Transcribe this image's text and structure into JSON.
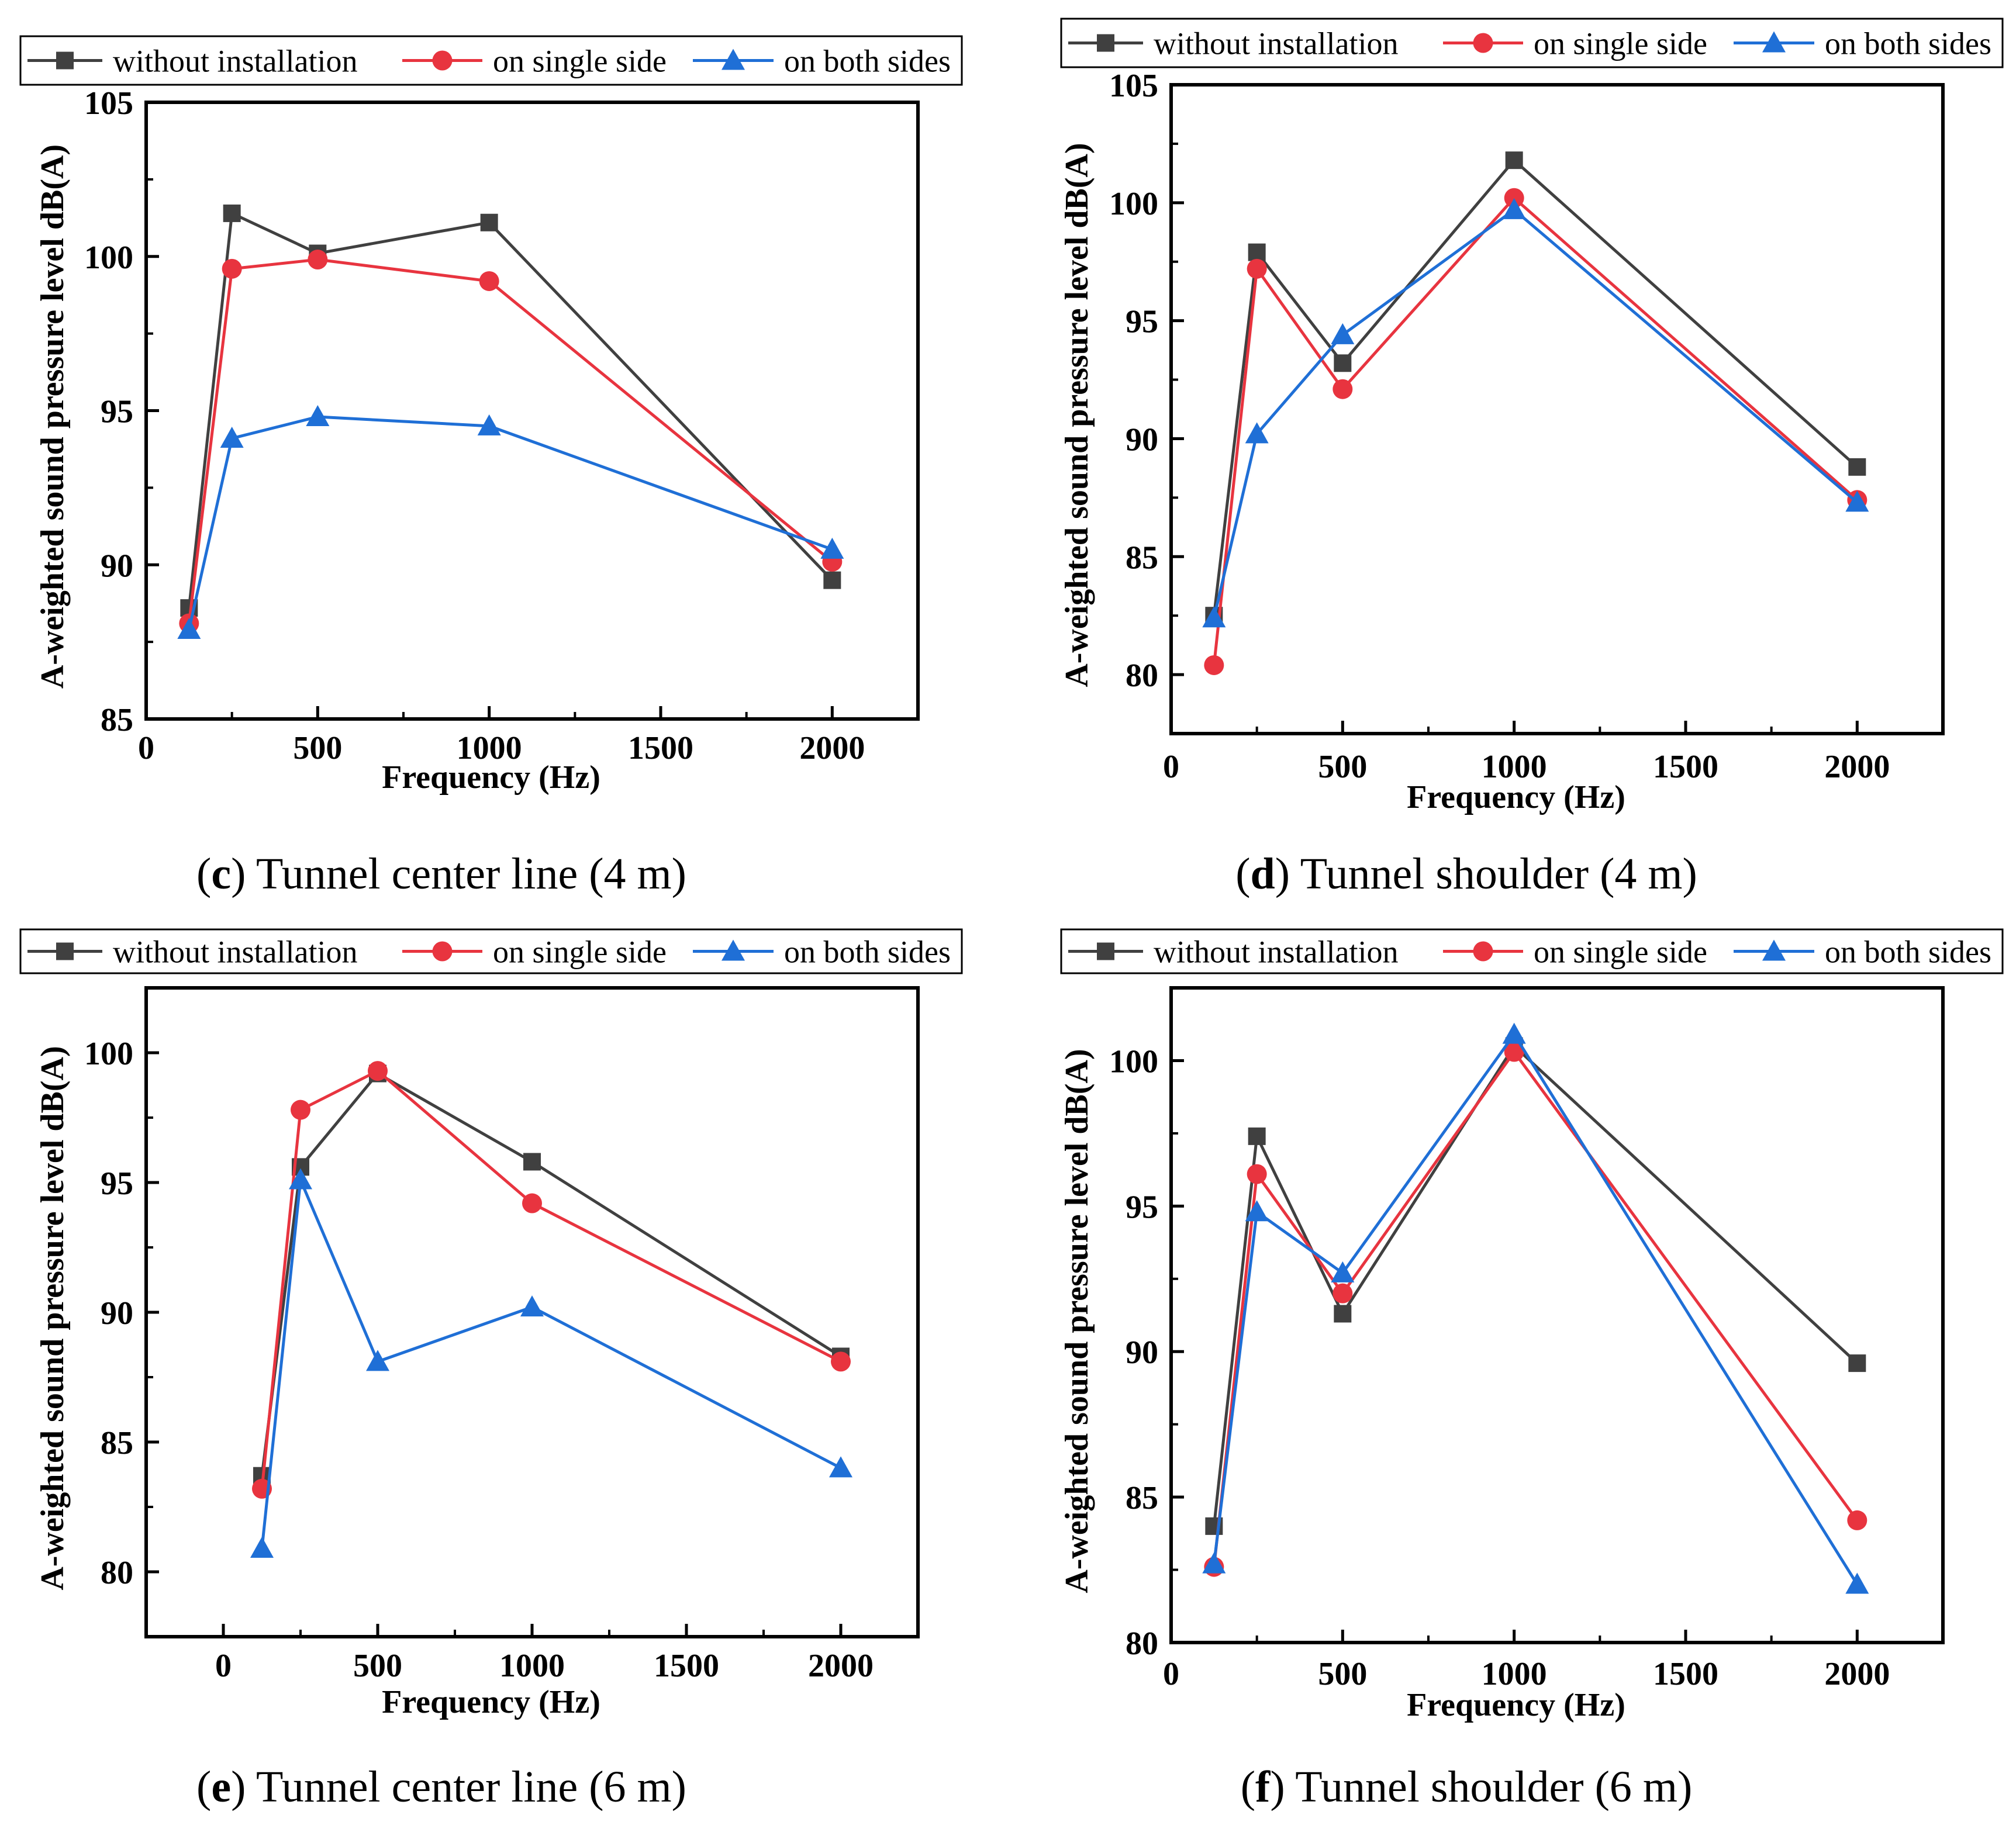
{
  "chart_data": [
    {
      "type": "line",
      "caption_letter": "c",
      "caption_text": " Tunnel center line (4 m)",
      "title": "(c) Tunnel center line (4 m)",
      "xlabel": "Frequency (Hz)",
      "ylabel": "A-weighted sound pressure level dB(A)",
      "xlim": [
        0,
        2250
      ],
      "ylim": [
        85,
        105
      ],
      "xticks": [
        0,
        500,
        1000,
        1500,
        2000
      ],
      "yticks": [
        85,
        90,
        95,
        100,
        105
      ],
      "grid": false,
      "legend_position": "top",
      "x": [
        125,
        250,
        500,
        1000,
        2000
      ],
      "series": [
        {
          "name": "without installation",
          "marker": "square",
          "color": "#404040",
          "values": [
            88.6,
            101.4,
            100.1,
            101.1,
            89.5
          ]
        },
        {
          "name": "on single side",
          "marker": "circle",
          "color": "#e8343f",
          "values": [
            88.1,
            99.6,
            99.9,
            99.2,
            90.1
          ]
        },
        {
          "name": "on both sides",
          "marker": "triangle",
          "color": "#1f6fd6",
          "values": [
            87.9,
            94.1,
            94.8,
            94.5,
            90.5
          ]
        }
      ]
    },
    {
      "type": "line",
      "caption_letter": "d",
      "caption_text": " Tunnel shoulder (4 m)",
      "title": "(d) Tunnel shoulder (4 m)",
      "xlabel": "Frequency (Hz)",
      "ylabel": "A-weighted sound pressure level dB(A)",
      "xlim": [
        0,
        2250
      ],
      "ylim": [
        77.5,
        105
      ],
      "xticks": [
        0,
        500,
        1000,
        1500,
        2000
      ],
      "yticks": [
        80,
        85,
        90,
        95,
        100,
        105
      ],
      "grid": false,
      "legend_position": "top",
      "x": [
        125,
        250,
        500,
        1000,
        2000
      ],
      "series": [
        {
          "name": "without installation",
          "marker": "square",
          "color": "#404040",
          "values": [
            82.5,
            97.9,
            93.2,
            101.8,
            88.8
          ]
        },
        {
          "name": "on single side",
          "marker": "circle",
          "color": "#e8343f",
          "values": [
            80.4,
            97.2,
            92.1,
            100.2,
            87.4
          ]
        },
        {
          "name": "on both sides",
          "marker": "triangle",
          "color": "#1f6fd6",
          "values": [
            82.4,
            90.2,
            94.4,
            99.7,
            87.3
          ]
        }
      ]
    },
    {
      "type": "line",
      "caption_letter": "e",
      "caption_text": " Tunnel center line (6 m)",
      "title": "(e) Tunnel center line (6 m)",
      "xlabel": "Frequency (Hz)",
      "ylabel": "A-weighted sound pressure level dB(A)",
      "xlim": [
        -250,
        2250
      ],
      "ylim": [
        77.5,
        102.5
      ],
      "xticks": [
        0,
        500,
        1000,
        1500,
        2000
      ],
      "yticks": [
        80,
        85,
        90,
        95,
        100
      ],
      "grid": false,
      "legend_position": "top",
      "x": [
        125,
        250,
        500,
        1000,
        2000
      ],
      "series": [
        {
          "name": "without installation",
          "marker": "square",
          "color": "#404040",
          "values": [
            83.7,
            95.6,
            99.2,
            95.8,
            88.3
          ]
        },
        {
          "name": "on single side",
          "marker": "circle",
          "color": "#e8343f",
          "values": [
            83.2,
            97.8,
            99.3,
            94.2,
            88.1
          ]
        },
        {
          "name": "on both sides",
          "marker": "triangle",
          "color": "#1f6fd6",
          "values": [
            80.9,
            95.1,
            88.1,
            90.2,
            84.0
          ]
        }
      ]
    },
    {
      "type": "line",
      "caption_letter": "f",
      "caption_text": " Tunnel shoulder (6 m)",
      "title": "(f) Tunnel shoulder (6 m)",
      "xlabel": "Frequency (Hz)",
      "ylabel": "A-weighted sound pressure level dB(A)",
      "xlim": [
        0,
        2250
      ],
      "ylim": [
        80,
        102.5
      ],
      "xticks": [
        0,
        500,
        1000,
        1500,
        2000
      ],
      "yticks": [
        80,
        85,
        90,
        95,
        100
      ],
      "grid": false,
      "legend_position": "top",
      "x": [
        125,
        250,
        500,
        1000,
        2000
      ],
      "series": [
        {
          "name": "without installation",
          "marker": "square",
          "color": "#404040",
          "values": [
            84.0,
            97.4,
            91.3,
            100.5,
            89.6
          ]
        },
        {
          "name": "on single side",
          "marker": "circle",
          "color": "#e8343f",
          "values": [
            82.6,
            96.1,
            92.0,
            100.3,
            84.2
          ]
        },
        {
          "name": "on both sides",
          "marker": "triangle",
          "color": "#1f6fd6",
          "values": [
            82.7,
            94.8,
            92.7,
            100.9,
            82.0
          ]
        }
      ]
    }
  ]
}
